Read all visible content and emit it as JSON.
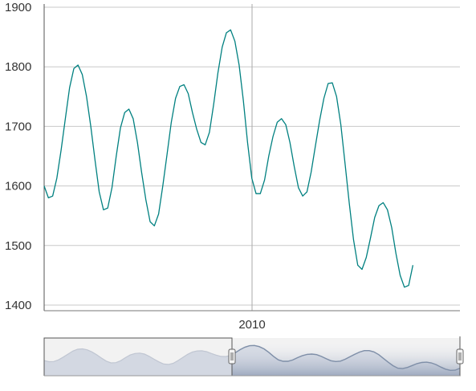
{
  "chart_data": {
    "type": "line",
    "title": "",
    "xlabel": "",
    "ylabel": "",
    "ylim": [
      1400,
      1900
    ],
    "y_ticks": [
      "1900",
      "1800",
      "1700",
      "1600",
      "1500",
      "1400"
    ],
    "x_ticks": [
      "2010"
    ],
    "grid": "horizontal lines at each y tick, one vertical line at 2010",
    "colors": {
      "line": "#008080",
      "navigator_line": "#7f8fa8",
      "grid": "#c8c8c8"
    },
    "series": [
      {
        "values": [
          1600,
          1580,
          1583,
          1613,
          1660,
          1713,
          1765,
          1797,
          1803,
          1787,
          1750,
          1700,
          1643,
          1590,
          1560,
          1563,
          1597,
          1650,
          1697,
          1723,
          1729,
          1713,
          1673,
          1623,
          1577,
          1540,
          1533,
          1553,
          1600,
          1653,
          1707,
          1747,
          1767,
          1770,
          1755,
          1723,
          1695,
          1673,
          1669,
          1690,
          1737,
          1790,
          1833,
          1857,
          1862,
          1843,
          1803,
          1743,
          1673,
          1613,
          1587,
          1587,
          1610,
          1650,
          1683,
          1707,
          1713,
          1703,
          1673,
          1633,
          1597,
          1583,
          1590,
          1623,
          1667,
          1710,
          1747,
          1772,
          1773,
          1750,
          1703,
          1637,
          1570,
          1510,
          1467,
          1460,
          1480,
          1513,
          1547,
          1567,
          1572,
          1560,
          1530,
          1487,
          1450,
          1430,
          1433,
          1467
        ]
      }
    ]
  },
  "navigator": {
    "handle_label": "navigator-handle"
  }
}
